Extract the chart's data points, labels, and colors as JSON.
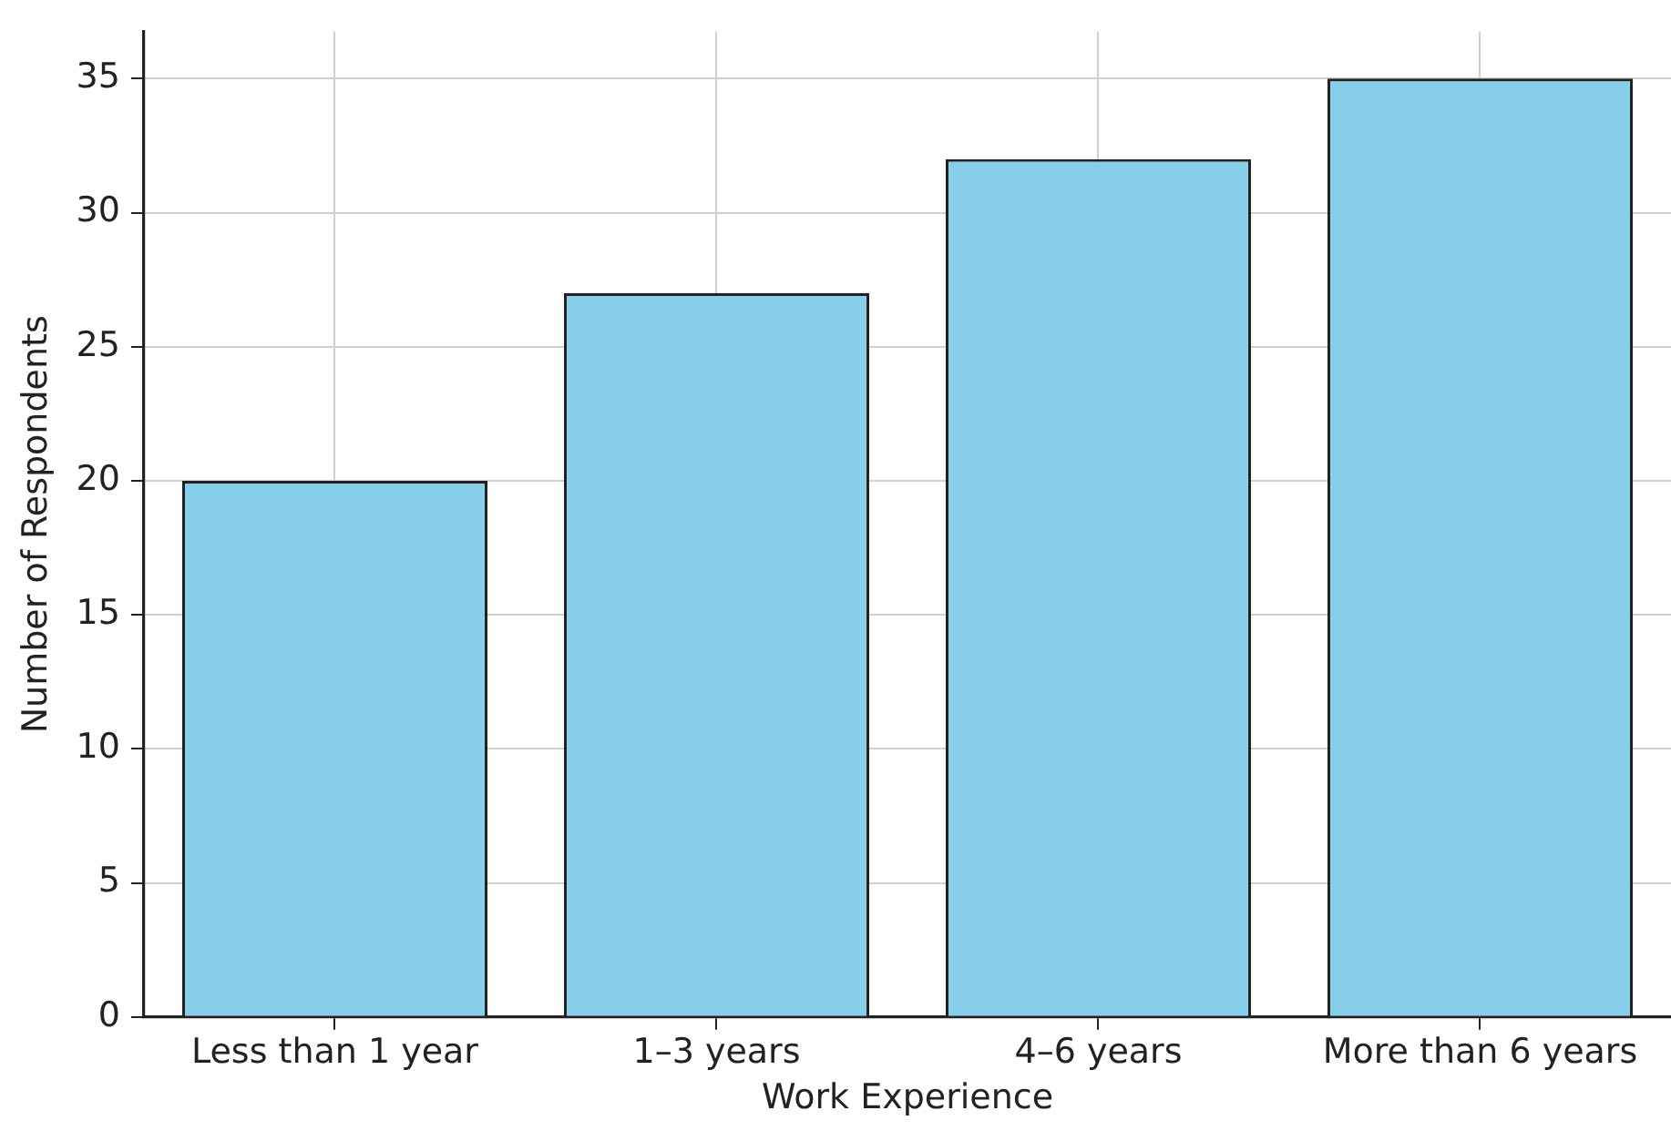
{
  "chart_data": {
    "type": "bar",
    "xlabel": "Work Experience",
    "ylabel": "Number of Respondents",
    "categories": [
      "Less than 1 year",
      "1–3 years",
      "4–6 years",
      "More than 6 years"
    ],
    "values": [
      20,
      27,
      32,
      35
    ],
    "color": "#87ceeb",
    "ylim": [
      0,
      36.75
    ],
    "yticks": [
      0,
      5,
      10,
      15,
      20,
      25,
      30,
      35
    ],
    "grid": true,
    "legend": false
  }
}
